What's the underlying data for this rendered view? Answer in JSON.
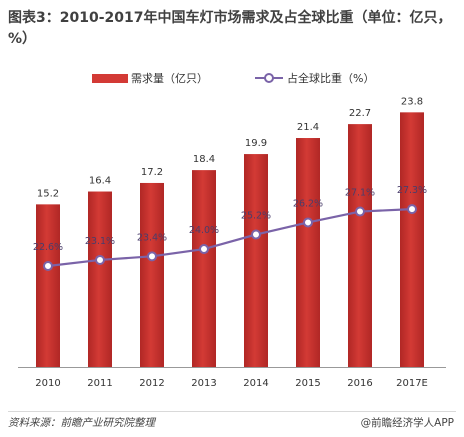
{
  "title": "图表3：2010-2017年中国车灯市场需求及占全球比重（单位：亿只，%）",
  "source": "资料来源：前瞻产业研究院整理",
  "brand": "@前瞻经济学人APP",
  "colors": {
    "bar": "#d33a35",
    "bar_dark": "#b02725",
    "line": "#7a63a8",
    "axis": "#999999"
  },
  "chart_data": {
    "type": "bar",
    "categories": [
      "2010",
      "2011",
      "2012",
      "2013",
      "2014",
      "2015",
      "2016",
      "2017E"
    ],
    "series": [
      {
        "name": "需求量（亿只）",
        "type": "bar",
        "values": [
          15.2,
          16.4,
          17.2,
          18.4,
          19.9,
          21.4,
          22.7,
          23.8
        ],
        "labels": [
          "15.2",
          "16.4",
          "17.2",
          "18.4",
          "19.9",
          "21.4",
          "22.7",
          "23.8"
        ]
      },
      {
        "name": "占全球比重（%）",
        "type": "line",
        "values": [
          22.6,
          23.1,
          23.4,
          24.0,
          25.2,
          26.2,
          27.1,
          27.3
        ],
        "labels": [
          "22.6%",
          "23.1%",
          "23.4%",
          "24.0%",
          "25.2%",
          "26.2%",
          "27.1%",
          "27.3%"
        ]
      }
    ],
    "title": "图表3：2010-2017年中国车灯市场需求及占全球比重（单位：亿只，%）",
    "legend_position": "top"
  }
}
